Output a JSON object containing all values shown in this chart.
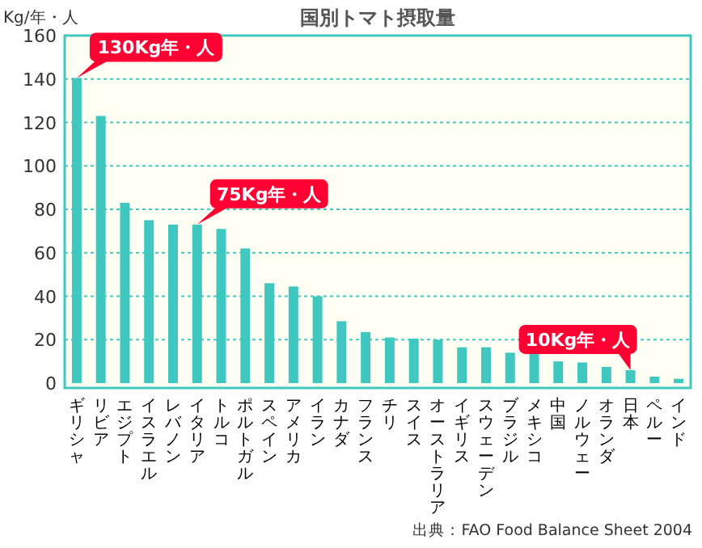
{
  "chart_data": {
    "type": "bar",
    "title": "国別トマト摂取量",
    "ylabel": "Kg/年・人",
    "categories": [
      "ギリシャ",
      "リビア",
      "エジプト",
      "イスラエル",
      "レバノン",
      "イタリア",
      "トルコ",
      "ポルトガル",
      "スペイン",
      "アメリカ",
      "イラン",
      "カナダ",
      "フランス",
      "チリ",
      "スイス",
      "オーストラリア",
      "イギリス",
      "スウェーデン",
      "ブラジル",
      "メキシコ",
      "中国",
      "ノルウェー",
      "オランダ",
      "日本",
      "ペルー",
      "インド"
    ],
    "values": [
      140.5,
      123,
      83,
      75,
      73,
      73,
      71,
      62,
      46,
      44.5,
      40,
      28.5,
      23.5,
      21,
      20.5,
      20,
      16.5,
      16.5,
      14,
      14,
      10,
      9.5,
      7.5,
      6,
      3,
      2
    ],
    "color": "#40c8c0",
    "ylim": [
      0,
      160
    ],
    "yticks": [
      0,
      20,
      40,
      60,
      80,
      100,
      120,
      140,
      160
    ],
    "grid": "y",
    "annotations": [
      {
        "text": "130Kg年・人",
        "x": "ギリシャ",
        "y": 140.5
      },
      {
        "text": "75Kg年・人",
        "x": "イタリア",
        "y": 73
      },
      {
        "text": "10Kg年・人",
        "x": "日本",
        "y": 6
      },
      "出典：FAO Food Balance Sheet 2004"
    ]
  }
}
